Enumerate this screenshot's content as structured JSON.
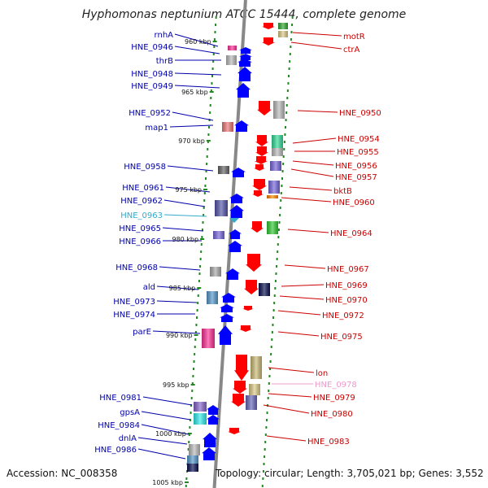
{
  "title": "Hyphomonas neptunium ATCC 15444, complete genome",
  "footer": {
    "accession": "Accession: NC_008358",
    "topology": "Topology: circular; Length: 3,705,021 bp; Genes: 3,552"
  },
  "colors": {
    "forward": "#0000ff",
    "reverse": "#ff0000",
    "left_label": "#0000aa",
    "right_label": "#cc0000",
    "highlight_left": "#33aacc",
    "highlight_right": "#ee99cc",
    "tick": "#228822",
    "spine": "#888888"
  },
  "kbp_ticks": [
    "960 kbp",
    "965 kbp",
    "970 kbp",
    "975 kbp",
    "980 kbp",
    "985 kbp",
    "990 kbp",
    "995 kbp",
    "1000 kbp",
    "1005 kbp"
  ],
  "left_labels": [
    {
      "name": "rnhA"
    },
    {
      "name": "HNE_0946"
    },
    {
      "name": "thrB"
    },
    {
      "name": "HNE_0948"
    },
    {
      "name": "HNE_0949"
    },
    {
      "name": "HNE_0952"
    },
    {
      "name": "map1"
    },
    {
      "name": "HNE_0958"
    },
    {
      "name": "HNE_0961"
    },
    {
      "name": "HNE_0962"
    },
    {
      "name": "HNE_0963",
      "highlight": true
    },
    {
      "name": "HNE_0965"
    },
    {
      "name": "HNE_0966"
    },
    {
      "name": "HNE_0968"
    },
    {
      "name": "ald"
    },
    {
      "name": "HNE_0973"
    },
    {
      "name": "HNE_0974"
    },
    {
      "name": "parE"
    },
    {
      "name": "HNE_0981"
    },
    {
      "name": "gpsA"
    },
    {
      "name": "HNE_0984"
    },
    {
      "name": "dnlA"
    },
    {
      "name": "HNE_0986"
    }
  ],
  "right_labels": [
    {
      "name": "motR"
    },
    {
      "name": "ctrA"
    },
    {
      "name": "HNE_0950"
    },
    {
      "name": "HNE_0954"
    },
    {
      "name": "HNE_0955"
    },
    {
      "name": "HNE_0956"
    },
    {
      "name": "HNE_0957"
    },
    {
      "name": "bktB"
    },
    {
      "name": "HNE_0960"
    },
    {
      "name": "HNE_0964"
    },
    {
      "name": "HNE_0967"
    },
    {
      "name": "HNE_0969"
    },
    {
      "name": "HNE_0970"
    },
    {
      "name": "HNE_0972"
    },
    {
      "name": "HNE_0975"
    },
    {
      "name": "lon"
    },
    {
      "name": "HNE_0978",
      "highlight": true
    },
    {
      "name": "HNE_0979"
    },
    {
      "name": "HNE_0980"
    },
    {
      "name": "HNE_0983"
    }
  ]
}
